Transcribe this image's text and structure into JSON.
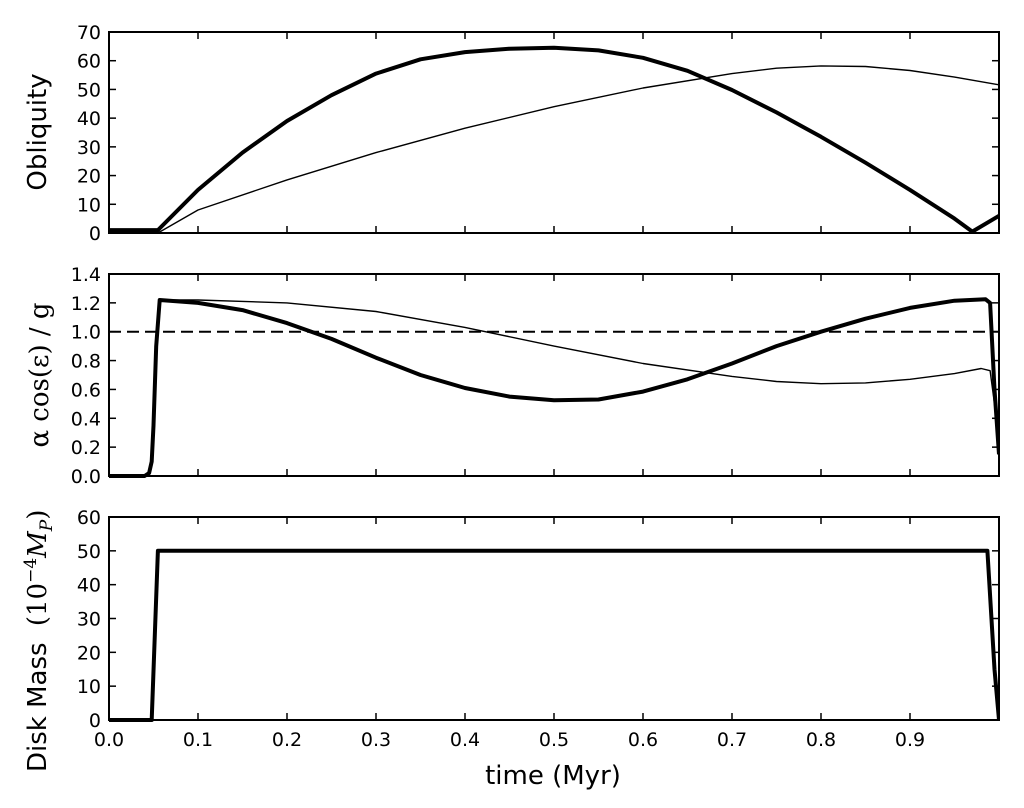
{
  "figure": {
    "xlabel": "time (Myr)"
  },
  "chart_data": [
    {
      "type": "line",
      "ylabel": "Obliquity",
      "xlim": [
        0,
        1.0
      ],
      "ylim": [
        0,
        70
      ],
      "xticks": [
        "0.0",
        "0.1",
        "0.2",
        "0.3",
        "0.4",
        "0.5",
        "0.6",
        "0.7",
        "0.8",
        "0.9"
      ],
      "show_xtick_labels": false,
      "yticks": [
        "0",
        "10",
        "20",
        "30",
        "40",
        "50",
        "60",
        "70"
      ],
      "series": [
        {
          "style": "thick",
          "x": [
            0.0,
            0.05,
            0.055,
            0.1,
            0.15,
            0.2,
            0.25,
            0.3,
            0.35,
            0.4,
            0.45,
            0.5,
            0.55,
            0.6,
            0.65,
            0.7,
            0.75,
            0.8,
            0.85,
            0.9,
            0.95,
            0.97,
            1.0
          ],
          "y": [
            1,
            1,
            1,
            15,
            28,
            39,
            48,
            55.5,
            60.5,
            63,
            64.2,
            64.5,
            63.6,
            61,
            56.5,
            49.8,
            42,
            33.5,
            24.5,
            15,
            5,
            0.5,
            6
          ]
        },
        {
          "style": "thin",
          "x": [
            0.0,
            0.05,
            0.055,
            0.1,
            0.2,
            0.3,
            0.4,
            0.5,
            0.6,
            0.7,
            0.75,
            0.8,
            0.85,
            0.9,
            0.95,
            1.0
          ],
          "y": [
            0,
            0,
            0,
            8,
            18.5,
            28,
            36.5,
            44,
            50.5,
            55.5,
            57.4,
            58.2,
            58,
            56.6,
            54.3,
            51.6
          ]
        }
      ]
    },
    {
      "type": "line",
      "ylabel": "α cos(ε) / g",
      "xlim": [
        0,
        1.0
      ],
      "ylim": [
        0,
        1.4
      ],
      "xticks": [
        "0.0",
        "0.1",
        "0.2",
        "0.3",
        "0.4",
        "0.5",
        "0.6",
        "0.7",
        "0.8",
        "0.9"
      ],
      "show_xtick_labels": false,
      "yticks": [
        "0.0",
        "0.2",
        "0.4",
        "0.6",
        "0.8",
        "1.0",
        "1.2",
        "1.4"
      ],
      "reference_line": {
        "y": 1.0,
        "style": "dashed"
      },
      "series": [
        {
          "style": "thick",
          "x": [
            0.0,
            0.04,
            0.045,
            0.048,
            0.05,
            0.053,
            0.057,
            0.1,
            0.15,
            0.2,
            0.25,
            0.3,
            0.35,
            0.4,
            0.45,
            0.5,
            0.55,
            0.6,
            0.65,
            0.7,
            0.75,
            0.8,
            0.85,
            0.9,
            0.95,
            0.985,
            0.99,
            0.995,
            1.0
          ],
          "y": [
            0,
            0,
            0.02,
            0.1,
            0.35,
            0.9,
            1.22,
            1.2,
            1.15,
            1.06,
            0.95,
            0.82,
            0.7,
            0.61,
            0.55,
            0.525,
            0.53,
            0.585,
            0.67,
            0.78,
            0.9,
            1.0,
            1.09,
            1.165,
            1.215,
            1.225,
            1.2,
            0.6,
            0.15
          ]
        },
        {
          "style": "thin",
          "x": [
            0.057,
            0.1,
            0.2,
            0.3,
            0.4,
            0.5,
            0.6,
            0.7,
            0.75,
            0.8,
            0.85,
            0.9,
            0.95,
            0.98,
            0.99,
            0.995,
            1.0
          ],
          "y": [
            1.22,
            1.22,
            1.2,
            1.14,
            1.03,
            0.9,
            0.78,
            0.69,
            0.655,
            0.64,
            0.645,
            0.67,
            0.71,
            0.745,
            0.73,
            0.5,
            0.2
          ]
        }
      ]
    },
    {
      "type": "line",
      "ylabel": "Disk Mass",
      "xlim": [
        0,
        1.0
      ],
      "ylim": [
        0,
        60
      ],
      "xticks": [
        "0.0",
        "0.1",
        "0.2",
        "0.3",
        "0.4",
        "0.5",
        "0.6",
        "0.7",
        "0.8",
        "0.9"
      ],
      "show_xtick_labels": true,
      "yticks": [
        "0",
        "10",
        "20",
        "30",
        "40",
        "50",
        "60"
      ],
      "series": [
        {
          "style": "thick",
          "x": [
            0.0,
            0.048,
            0.055,
            0.987,
            0.995,
            1.0
          ],
          "y": [
            0,
            0,
            50,
            50,
            15,
            0
          ]
        }
      ]
    }
  ]
}
